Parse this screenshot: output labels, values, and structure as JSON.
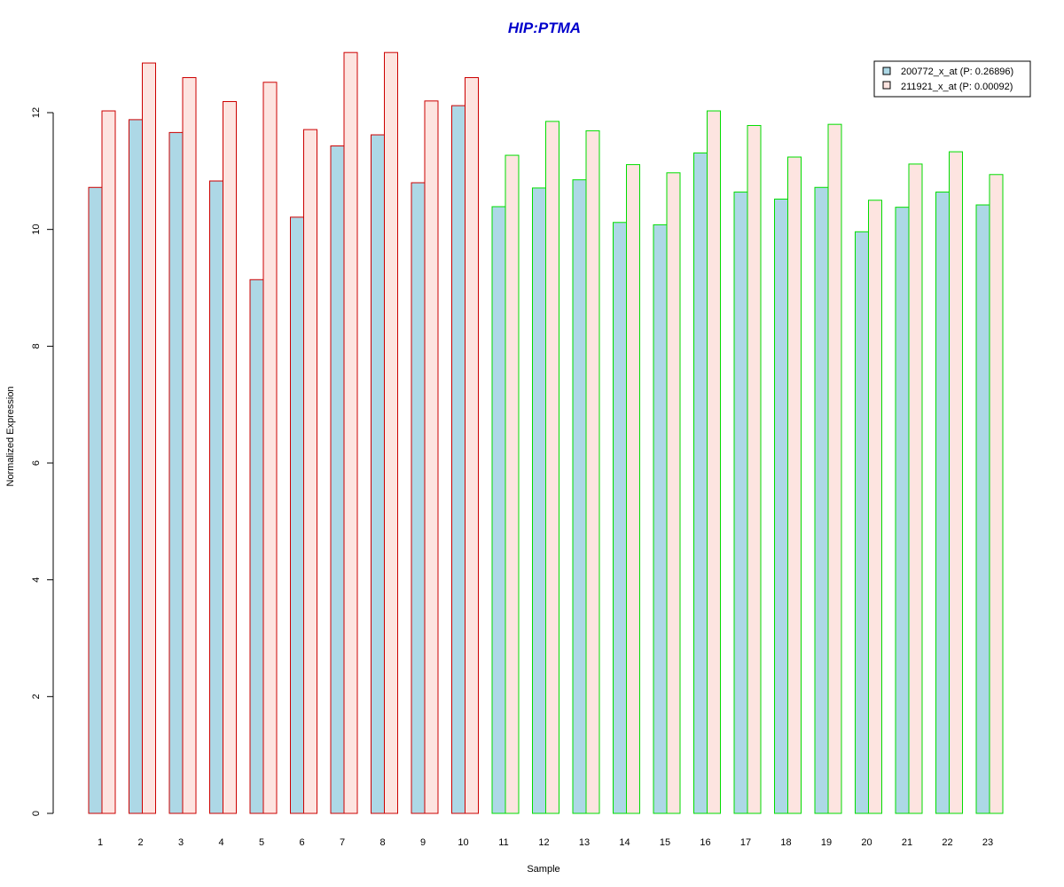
{
  "chart_data": {
    "type": "bar",
    "title": "HIP:PTMA",
    "title_color": "#0000CC",
    "xlabel": "Sample",
    "ylabel": "Normalized Expression",
    "ylim": [
      0,
      13
    ],
    "yticks": [
      0,
      2,
      4,
      6,
      8,
      10,
      12
    ],
    "grid": false,
    "legend_position": "top-right",
    "categories": [
      "1",
      "2",
      "3",
      "4",
      "5",
      "6",
      "7",
      "8",
      "9",
      "10",
      "11",
      "12",
      "13",
      "14",
      "15",
      "16",
      "17",
      "18",
      "19",
      "20",
      "21",
      "22",
      "23"
    ],
    "group_border_colors": [
      "#CC0000",
      "#CC0000",
      "#CC0000",
      "#CC0000",
      "#CC0000",
      "#CC0000",
      "#CC0000",
      "#CC0000",
      "#CC0000",
      "#CC0000",
      "#00DD00",
      "#00DD00",
      "#00DD00",
      "#00DD00",
      "#00DD00",
      "#00DD00",
      "#00DD00",
      "#00DD00",
      "#00DD00",
      "#00DD00",
      "#00DD00",
      "#00DD00",
      "#00DD00"
    ],
    "series": [
      {
        "name": "200772_x_at (P: 0.26896)",
        "fill": "#ADD8E6",
        "values": [
          10.72,
          11.88,
          11.66,
          10.83,
          9.14,
          10.21,
          11.43,
          11.62,
          10.8,
          12.12,
          10.39,
          10.71,
          10.85,
          10.12,
          10.08,
          11.31,
          10.64,
          10.52,
          10.72,
          9.96,
          10.38,
          10.64,
          10.42
        ]
      },
      {
        "name": "211921_x_at (P: 0.00092)",
        "fill": "#FDE4E0",
        "values": [
          12.03,
          12.85,
          12.6,
          12.19,
          12.52,
          11.71,
          13.03,
          13.03,
          12.2,
          12.6,
          11.27,
          11.85,
          11.69,
          11.11,
          10.97,
          12.03,
          11.78,
          11.24,
          11.8,
          10.5,
          11.12,
          11.33,
          10.94
        ]
      }
    ]
  }
}
